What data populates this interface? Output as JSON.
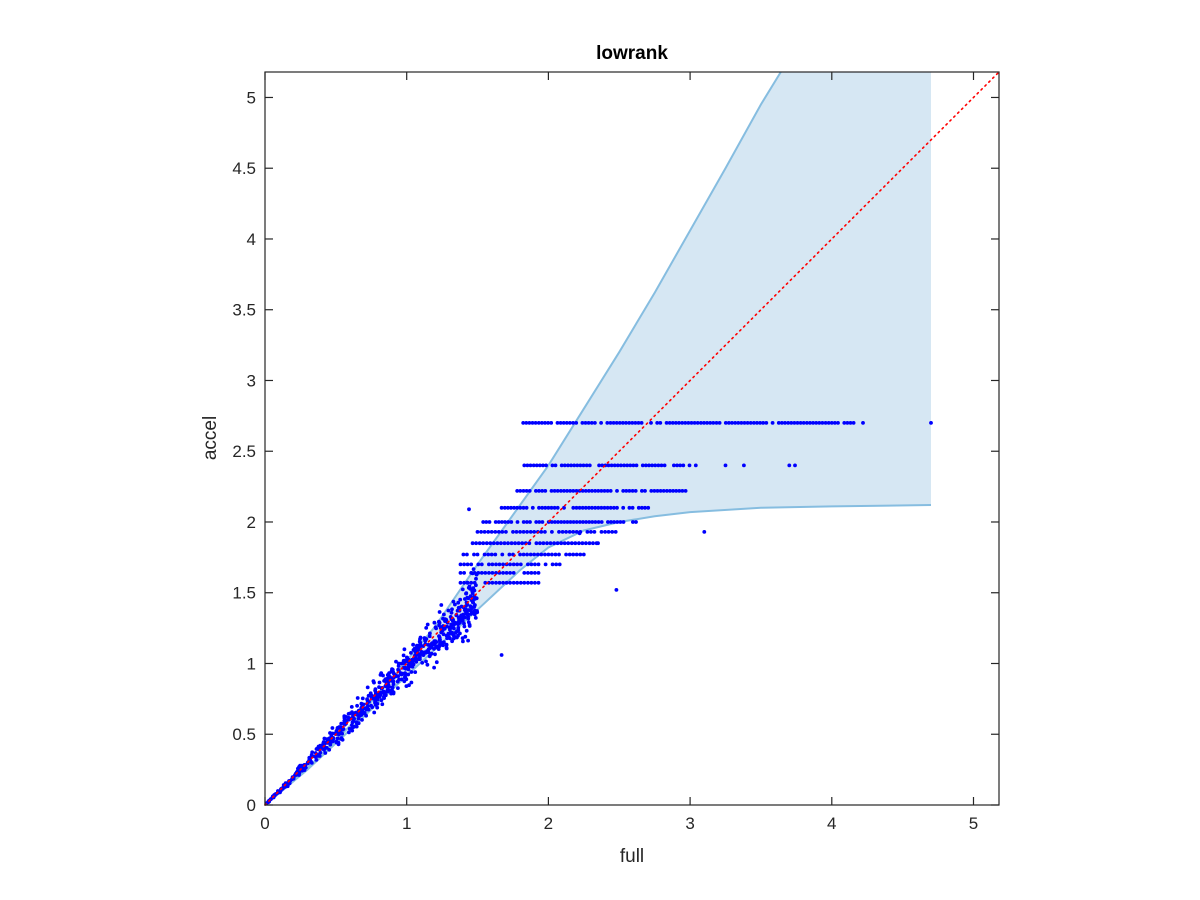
{
  "chart_data": {
    "type": "scatter",
    "title": "lowrank",
    "xlabel": "full",
    "ylabel": "accel",
    "xlim": [
      0,
      5.18
    ],
    "ylim": [
      0,
      5.18
    ],
    "xticks": [
      0,
      1,
      2,
      3,
      4,
      5
    ],
    "xtick_labels": [
      "0",
      "1",
      "2",
      "3",
      "4",
      "5"
    ],
    "yticks": [
      0,
      0.5,
      1,
      1.5,
      2,
      2.5,
      3,
      3.5,
      4,
      4.5,
      5
    ],
    "ytick_labels": [
      "0",
      "0.5",
      "1",
      "1.5",
      "2",
      "2.5",
      "3",
      "3.5",
      "4",
      "4.5",
      "5"
    ],
    "grid": false,
    "legend": "none",
    "colors": {
      "points": "#0000ff",
      "band_fill": "#d6e7f3",
      "band_edge": "#86bde0",
      "reference_line": "#ff0000",
      "axes": "#262626"
    },
    "band": {
      "upper": [
        [
          0.0,
          0.0
        ],
        [
          0.3,
          0.26
        ],
        [
          0.6,
          0.56
        ],
        [
          0.9,
          0.9
        ],
        [
          1.2,
          1.26
        ],
        [
          1.5,
          1.7
        ],
        [
          1.8,
          2.12
        ],
        [
          2.0,
          2.4
        ],
        [
          2.25,
          2.8
        ],
        [
          2.5,
          3.2
        ],
        [
          2.75,
          3.62
        ],
        [
          3.0,
          4.06
        ],
        [
          3.25,
          4.5
        ],
        [
          3.5,
          4.95
        ],
        [
          3.64,
          5.18
        ],
        [
          4.7,
          5.18
        ]
      ],
      "lower": [
        [
          0.0,
          0.0
        ],
        [
          0.3,
          0.25
        ],
        [
          0.6,
          0.53
        ],
        [
          0.9,
          0.82
        ],
        [
          1.2,
          1.1
        ],
        [
          1.5,
          1.38
        ],
        [
          1.8,
          1.66
        ],
        [
          2.0,
          1.82
        ],
        [
          2.25,
          1.94
        ],
        [
          2.5,
          2.0
        ],
        [
          2.75,
          2.04
        ],
        [
          3.0,
          2.07
        ],
        [
          3.5,
          2.1
        ],
        [
          4.0,
          2.11
        ],
        [
          4.7,
          2.12
        ]
      ]
    },
    "reference_line": {
      "style": "dotted",
      "from": [
        0,
        0
      ],
      "to": [
        5.18,
        5.18
      ]
    },
    "series": [
      {
        "cloud": {
          "count": 650,
          "x_range": [
            0.01,
            1.5
          ],
          "slope": 0.98,
          "spread": 0.12
        },
        "quantized_levels": [
          {
            "y": 2.7,
            "x_range": [
              1.8,
              4.23
            ],
            "step": 0.022,
            "extra_x": [
              4.7
            ]
          },
          {
            "y": 2.4,
            "x_range": [
              1.83,
              3.04
            ],
            "step": 0.022,
            "extra_x": [
              3.25,
              3.38,
              3.7,
              3.74
            ]
          },
          {
            "y": 2.22,
            "x_range": [
              1.78,
              2.98
            ],
            "step": 0.022
          },
          {
            "y": 2.1,
            "x_range": [
              1.67,
              2.72
            ],
            "step": 0.022
          },
          {
            "y": 2.0,
            "x_range": [
              1.54,
              2.62
            ],
            "step": 0.022
          },
          {
            "y": 1.93,
            "x_range": [
              1.5,
              2.48
            ],
            "step": 0.025
          },
          {
            "y": 1.85,
            "x_range": [
              1.44,
              2.35
            ],
            "step": 0.025
          },
          {
            "y": 1.77,
            "x_range": [
              1.4,
              2.25
            ],
            "step": 0.025
          },
          {
            "y": 1.7,
            "x_range": [
              1.38,
              2.1
            ],
            "step": 0.025
          },
          {
            "y": 1.64,
            "x_range": [
              1.38,
              1.97
            ],
            "step": 0.025
          },
          {
            "y": 1.57,
            "x_range": [
              1.38,
              1.93
            ],
            "step": 0.025
          }
        ],
        "outliers": [
          [
            1.44,
            2.09
          ],
          [
            2.48,
            1.52
          ],
          [
            3.1,
            1.93
          ],
          [
            1.67,
            1.06
          ],
          [
            2.22,
            1.92
          ],
          [
            2.35,
            1.85
          ]
        ]
      }
    ]
  }
}
